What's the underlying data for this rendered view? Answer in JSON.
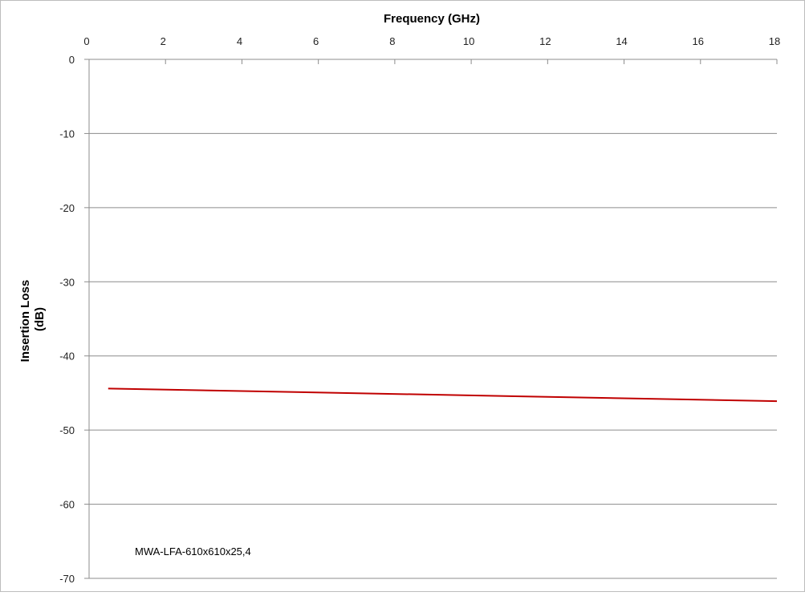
{
  "chart_data": {
    "type": "line",
    "title": "",
    "xlabel": "Frequency (GHz)",
    "ylabel_lines": [
      "Insertion Loss",
      "(dB)"
    ],
    "xlim": [
      0,
      18
    ],
    "ylim": [
      -70,
      0
    ],
    "x_ticks": [
      0,
      2,
      4,
      6,
      8,
      10,
      12,
      14,
      16,
      18
    ],
    "y_ticks": [
      0,
      -10,
      -20,
      -30,
      -40,
      -50,
      -60,
      -70
    ],
    "x_axis_position": "top",
    "grid": "horizontal",
    "series": [
      {
        "color": "#c00000",
        "x": [
          0.5,
          18
        ],
        "y": [
          -44.4,
          -46.1
        ]
      }
    ],
    "annotation": "MWA-LFA-610x610x25,4"
  }
}
